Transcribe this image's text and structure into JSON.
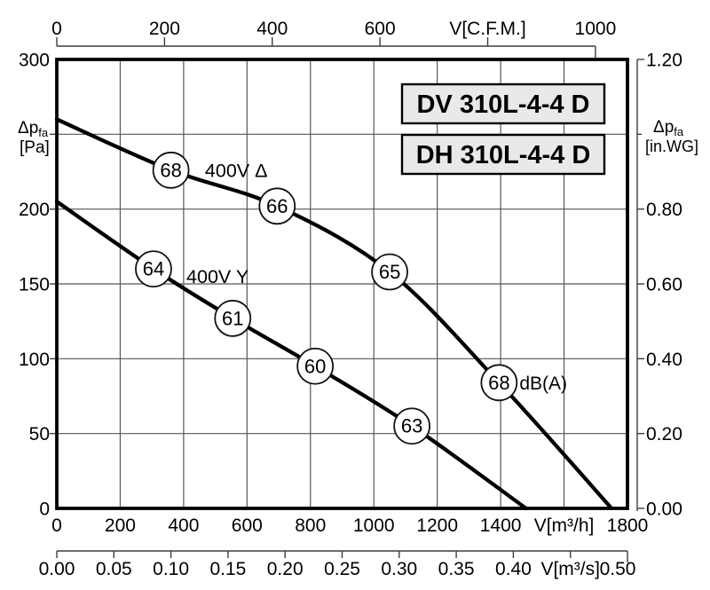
{
  "model_labels": [
    {
      "text": "DV 310L-4-4 D"
    },
    {
      "text": "DH 310L-4-4 D"
    }
  ],
  "colors": {
    "curve": "#000000",
    "grid": "#565656",
    "axis": "#3d3d3d",
    "border": "#000000",
    "box_bg": "#e9e9e9",
    "circle_fill": "#ffffff"
  },
  "chart_data": {
    "type": "line",
    "grid": {
      "x_step_m3h": 200,
      "y_step_pa": 50,
      "grid_on": true
    },
    "axes": {
      "bottom": {
        "title": "V[m³/h]",
        "min": 0,
        "max": 1800,
        "ticks": [
          {
            "value": 0,
            "label": "0"
          },
          {
            "value": 200,
            "label": "200"
          },
          {
            "value": 400,
            "label": "400"
          },
          {
            "value": 600,
            "label": "600"
          },
          {
            "value": 800,
            "label": "800"
          },
          {
            "value": 1000,
            "label": "1000"
          },
          {
            "value": 1200,
            "label": "1200"
          },
          {
            "value": 1400,
            "label": "1400"
          },
          {
            "value": 1600,
            "label": "V[m³/h]",
            "is_title": true
          },
          {
            "value": 1800,
            "label": "1800"
          }
        ]
      },
      "bottom2": {
        "title": "V[m³/s]",
        "min": 0,
        "max": 0.5,
        "ticks": [
          {
            "value": 0.0,
            "label": "0.00"
          },
          {
            "value": 0.05,
            "label": "0.05"
          },
          {
            "value": 0.1,
            "label": "0.10"
          },
          {
            "value": 0.15,
            "label": "0.15"
          },
          {
            "value": 0.2,
            "label": "0.20"
          },
          {
            "value": 0.25,
            "label": "0.25"
          },
          {
            "value": 0.3,
            "label": "0.30"
          },
          {
            "value": 0.35,
            "label": "0.35"
          },
          {
            "value": 0.4,
            "label": "0.40"
          },
          {
            "value": 0.45,
            "label": "V[m³/s]",
            "is_title": true
          },
          {
            "value": 0.5,
            "label": "0.50"
          }
        ]
      },
      "top": {
        "title": "V[C.F.M.]",
        "min": 0,
        "max": 1000,
        "ticks": [
          {
            "value": 0,
            "label": "0"
          },
          {
            "value": 200,
            "label": "200"
          },
          {
            "value": 400,
            "label": "400"
          },
          {
            "value": 600,
            "label": "600"
          },
          {
            "value": 800,
            "label": "V[C.F.M.]",
            "is_title": true
          },
          {
            "value": 1000,
            "label": "1000"
          }
        ]
      },
      "left": {
        "title_main": "Δp",
        "title_sub": "fa",
        "title_unit": "[Pa]",
        "title_at_value": 250,
        "min": 0,
        "max": 300,
        "ticks": [
          {
            "value": 300,
            "label": "300"
          },
          {
            "value": 200,
            "label": "200"
          },
          {
            "value": 150,
            "label": "150"
          },
          {
            "value": 100,
            "label": "100"
          },
          {
            "value": 50,
            "label": "50"
          },
          {
            "value": 0,
            "label": "0"
          }
        ]
      },
      "right": {
        "title_main": "Δp",
        "title_sub": "fa",
        "title_unit": "[in.WG]",
        "title_at_value": 1.0,
        "min": 0,
        "max": 1.2,
        "ticks": [
          {
            "value": 1.2,
            "label": "1.20"
          },
          {
            "value": 0.8,
            "label": "0.80"
          },
          {
            "value": 0.6,
            "label": "0.60"
          },
          {
            "value": 0.4,
            "label": "0.40"
          },
          {
            "value": 0.2,
            "label": "0.20"
          },
          {
            "value": 0.0,
            "label": "0.00"
          }
        ]
      }
    },
    "series": [
      {
        "name": "400V Δ",
        "label_pos": {
          "v": 566,
          "pa": 226
        },
        "points_v_pa": [
          [
            0,
            260
          ],
          [
            360,
            226
          ],
          [
            695,
            202
          ],
          [
            1050,
            158
          ],
          [
            1395,
            84
          ],
          [
            1750,
            0
          ]
        ],
        "noise_labels": [
          {
            "db": "68",
            "v": 360,
            "pa": 226
          },
          {
            "db": "66",
            "v": 695,
            "pa": 202
          },
          {
            "db": "65",
            "v": 1050,
            "pa": 158
          },
          {
            "db": "68",
            "v": 1395,
            "pa": 84,
            "suffix": "dB(A)"
          }
        ]
      },
      {
        "name": "400V Y",
        "label_pos": {
          "v": 507,
          "pa": 155
        },
        "points_v_pa": [
          [
            0,
            205
          ],
          [
            305,
            160
          ],
          [
            555,
            127
          ],
          [
            815,
            95
          ],
          [
            1120,
            55
          ],
          [
            1480,
            0
          ]
        ],
        "noise_labels": [
          {
            "db": "64",
            "v": 305,
            "pa": 160
          },
          {
            "db": "61",
            "v": 555,
            "pa": 127
          },
          {
            "db": "60",
            "v": 815,
            "pa": 95
          },
          {
            "db": "63",
            "v": 1120,
            "pa": 55
          }
        ]
      }
    ],
    "noise_unit": "dB(A)"
  }
}
